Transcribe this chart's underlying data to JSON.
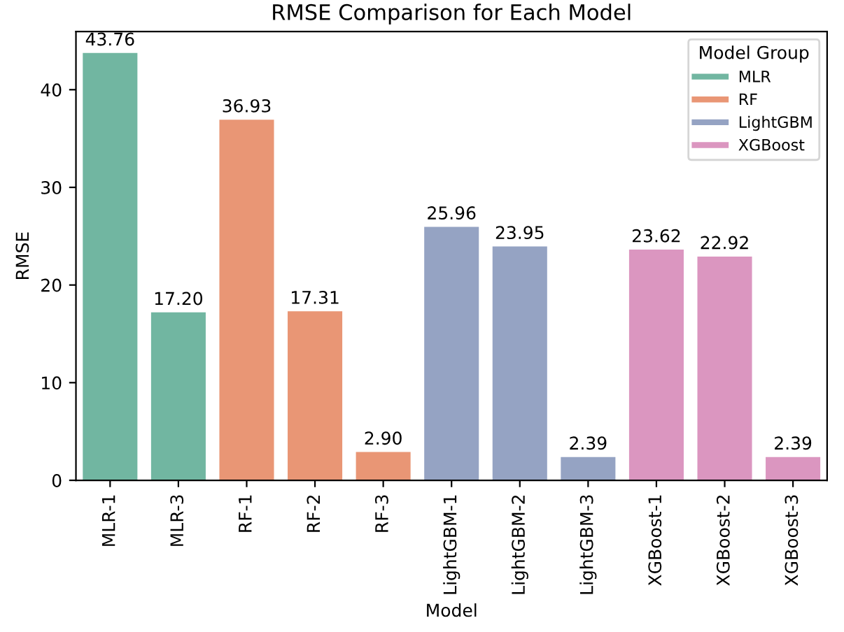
{
  "chart_data": {
    "type": "bar",
    "title": "RMSE Comparison for Each Model",
    "xlabel": "Model",
    "ylabel": "RMSE",
    "categories": [
      "MLR-1",
      "MLR-3",
      "RF-1",
      "RF-2",
      "RF-3",
      "LightGBM-1",
      "LightGBM-2",
      "LightGBM-3",
      "XGBoost-1",
      "XGBoost-2",
      "XGBoost-3"
    ],
    "series": [
      {
        "name": "MLR",
        "color": "#71b6a1",
        "values": [
          43.76,
          17.2,
          null,
          null,
          null,
          null,
          null,
          null,
          null,
          null,
          null
        ],
        "value_labels": [
          "43.76",
          "17.20",
          null,
          null,
          null,
          null,
          null,
          null,
          null,
          null,
          null
        ]
      },
      {
        "name": "RF",
        "color": "#e99675",
        "values": [
          null,
          null,
          36.93,
          17.31,
          2.9,
          null,
          null,
          null,
          null,
          null,
          null
        ],
        "value_labels": [
          null,
          null,
          "36.93",
          "17.31",
          "2.90",
          null,
          null,
          null,
          null,
          null,
          null
        ]
      },
      {
        "name": "LightGBM",
        "color": "#95a3c3",
        "values": [
          null,
          null,
          null,
          null,
          null,
          25.96,
          23.95,
          2.39,
          null,
          null,
          null
        ],
        "value_labels": [
          null,
          null,
          null,
          null,
          null,
          "25.96",
          "23.95",
          "2.39",
          null,
          null,
          null
        ]
      },
      {
        "name": "XGBoost",
        "color": "#db96c0",
        "values": [
          null,
          null,
          null,
          null,
          null,
          null,
          null,
          null,
          23.62,
          22.92,
          2.39
        ],
        "value_labels": [
          null,
          null,
          null,
          null,
          null,
          null,
          null,
          null,
          "23.62",
          "22.92",
          "2.39"
        ]
      }
    ],
    "legend_title": "Model Group",
    "legend": "top right",
    "ylim": [
      0,
      45.95
    ],
    "yticks": [
      0,
      10,
      20,
      30,
      40
    ],
    "grid": false
  }
}
